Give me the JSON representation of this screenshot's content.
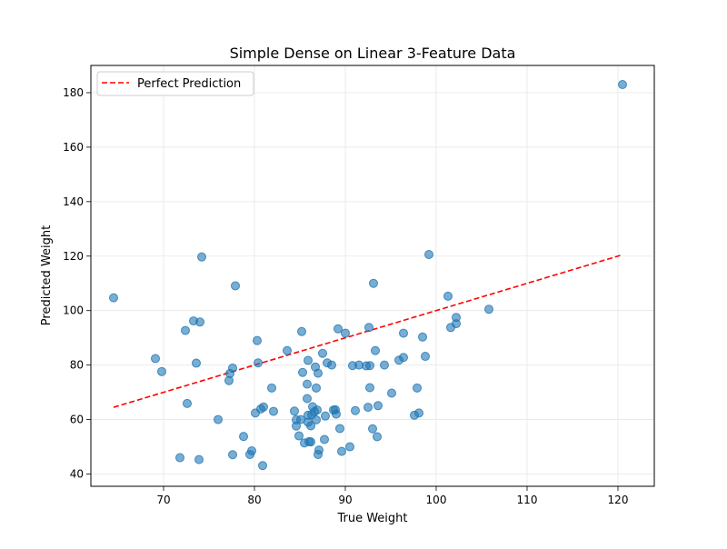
{
  "chart_data": {
    "type": "scatter",
    "title": "Simple Dense on Linear 3-Feature Data",
    "xlabel": "True Weight",
    "ylabel": "Predicted Weight",
    "xlim": [
      62,
      124
    ],
    "ylim": [
      35.5,
      190
    ],
    "xticks": [
      70,
      80,
      90,
      100,
      110,
      120
    ],
    "yticks": [
      40,
      60,
      80,
      100,
      120,
      140,
      160,
      180
    ],
    "grid": true,
    "legend": {
      "position": "top-left",
      "entries": [
        "Perfect Prediction"
      ]
    },
    "series": [
      {
        "kind": "scatter",
        "color": "#1f77b4",
        "points": [
          [
            64.5,
            104.7
          ],
          [
            69.1,
            82.4
          ],
          [
            69.8,
            77.6
          ],
          [
            71.8,
            46.0
          ],
          [
            72.4,
            92.7
          ],
          [
            72.6,
            65.9
          ],
          [
            73.3,
            96.2
          ],
          [
            73.6,
            80.7
          ],
          [
            73.9,
            45.3
          ],
          [
            74.0,
            95.8
          ],
          [
            74.2,
            119.7
          ],
          [
            76.0,
            60.0
          ],
          [
            77.2,
            74.3
          ],
          [
            77.3,
            76.9
          ],
          [
            77.6,
            47.1
          ],
          [
            77.6,
            78.9
          ],
          [
            77.9,
            109.1
          ],
          [
            78.8,
            53.8
          ],
          [
            79.5,
            47.2
          ],
          [
            79.7,
            48.5
          ],
          [
            80.1,
            62.4
          ],
          [
            80.3,
            89.0
          ],
          [
            80.4,
            80.8
          ],
          [
            80.7,
            63.9
          ],
          [
            80.9,
            43.1
          ],
          [
            81.0,
            64.6
          ],
          [
            81.9,
            71.6
          ],
          [
            82.1,
            63.0
          ],
          [
            83.6,
            85.3
          ],
          [
            84.4,
            63.1
          ],
          [
            84.6,
            57.6
          ],
          [
            84.6,
            59.9
          ],
          [
            84.9,
            54.0
          ],
          [
            85.1,
            60.0
          ],
          [
            85.2,
            92.3
          ],
          [
            85.3,
            77.3
          ],
          [
            85.5,
            51.4
          ],
          [
            85.8,
            67.7
          ],
          [
            85.8,
            73.0
          ],
          [
            85.9,
            61.6
          ],
          [
            85.9,
            81.7
          ],
          [
            85.9,
            59.0
          ],
          [
            86.0,
            51.9
          ],
          [
            86.2,
            51.8
          ],
          [
            86.2,
            57.7
          ],
          [
            86.3,
            61.8
          ],
          [
            86.4,
            64.7
          ],
          [
            86.6,
            62.9
          ],
          [
            86.7,
            79.3
          ],
          [
            86.8,
            59.9
          ],
          [
            86.8,
            71.6
          ],
          [
            86.9,
            63.5
          ],
          [
            87.0,
            77.0
          ],
          [
            87.0,
            47.2
          ],
          [
            87.1,
            48.8
          ],
          [
            87.5,
            84.3
          ],
          [
            87.7,
            52.7
          ],
          [
            87.8,
            61.3
          ],
          [
            88.0,
            80.8
          ],
          [
            88.5,
            80.0
          ],
          [
            88.7,
            63.5
          ],
          [
            88.9,
            63.6
          ],
          [
            89.0,
            62.0
          ],
          [
            89.2,
            93.3
          ],
          [
            89.4,
            56.7
          ],
          [
            89.6,
            48.3
          ],
          [
            90.0,
            91.7
          ],
          [
            90.5,
            50.0
          ],
          [
            90.8,
            79.8
          ],
          [
            91.1,
            63.3
          ],
          [
            91.5,
            80.0
          ],
          [
            92.3,
            79.7
          ],
          [
            92.5,
            64.5
          ],
          [
            92.6,
            93.8
          ],
          [
            92.7,
            71.7
          ],
          [
            92.7,
            79.8
          ],
          [
            93.0,
            56.6
          ],
          [
            93.1,
            110.0
          ],
          [
            93.3,
            85.3
          ],
          [
            93.5,
            53.7
          ],
          [
            93.6,
            65.1
          ],
          [
            94.3,
            80.0
          ],
          [
            95.1,
            69.7
          ],
          [
            95.9,
            81.8
          ],
          [
            96.4,
            82.8
          ],
          [
            96.4,
            91.7
          ],
          [
            97.6,
            61.6
          ],
          [
            97.9,
            71.6
          ],
          [
            98.1,
            62.4
          ],
          [
            98.5,
            90.3
          ],
          [
            98.8,
            83.2
          ],
          [
            99.2,
            120.6
          ],
          [
            101.3,
            105.3
          ],
          [
            101.6,
            93.8
          ],
          [
            102.2,
            95.2
          ],
          [
            102.2,
            97.5
          ],
          [
            105.8,
            100.5
          ],
          [
            120.5,
            183.0
          ]
        ]
      },
      {
        "kind": "line",
        "name": "Perfect Prediction",
        "color": "#ff0000",
        "dash": "dashed",
        "points": [
          [
            64.5,
            64.5
          ],
          [
            120.5,
            120.5
          ]
        ]
      }
    ]
  }
}
